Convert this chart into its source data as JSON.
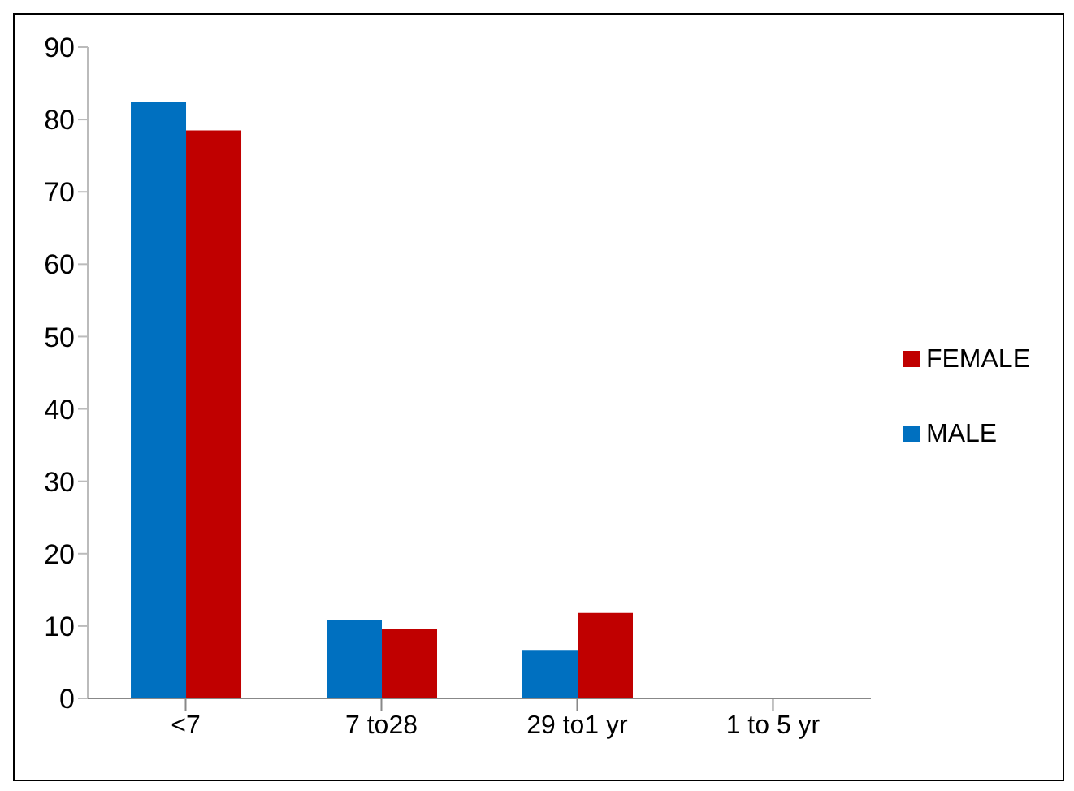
{
  "chart_data": {
    "type": "bar",
    "categories": [
      "<7",
      "7 to28",
      "29 to1 yr",
      "1 to 5 yr"
    ],
    "series": [
      {
        "name": "MALE",
        "color": "#0070c0",
        "values": [
          82.4,
          10.8,
          6.7,
          0
        ]
      },
      {
        "name": "FEMALE",
        "color": "#c00000",
        "values": [
          78.5,
          9.6,
          11.8,
          0
        ]
      }
    ],
    "ylim": [
      0,
      90
    ],
    "yticks": [
      0,
      10,
      20,
      30,
      40,
      50,
      60,
      70,
      80,
      90
    ],
    "legend": "right"
  }
}
